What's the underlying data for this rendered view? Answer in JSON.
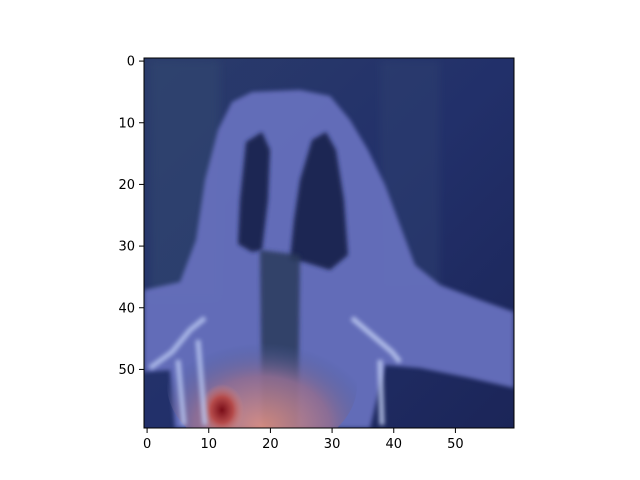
{
  "chart_data": {
    "type": "heatmap",
    "title": "",
    "xlabel": "",
    "ylabel": "",
    "xlim": [
      -0.5,
      59.5
    ],
    "ylim": [
      59.5,
      -0.5
    ],
    "x_ticks": [
      0,
      10,
      20,
      30,
      40,
      50
    ],
    "y_ticks": [
      0,
      10,
      20,
      30,
      40,
      50
    ],
    "x_tick_labels": [
      "0",
      "10",
      "20",
      "30",
      "40",
      "50"
    ],
    "y_tick_labels": [
      "0",
      "10",
      "20",
      "30",
      "40",
      "50"
    ],
    "image_size": [
      60,
      60
    ],
    "colors": {
      "background": "#1e2a5e",
      "mid_blue": "#2c3a73",
      "silhouette": "#6a73c0",
      "highlight": "#b8c6f0",
      "warm": "#d98a80",
      "hot": "#8a1a1e"
    }
  }
}
